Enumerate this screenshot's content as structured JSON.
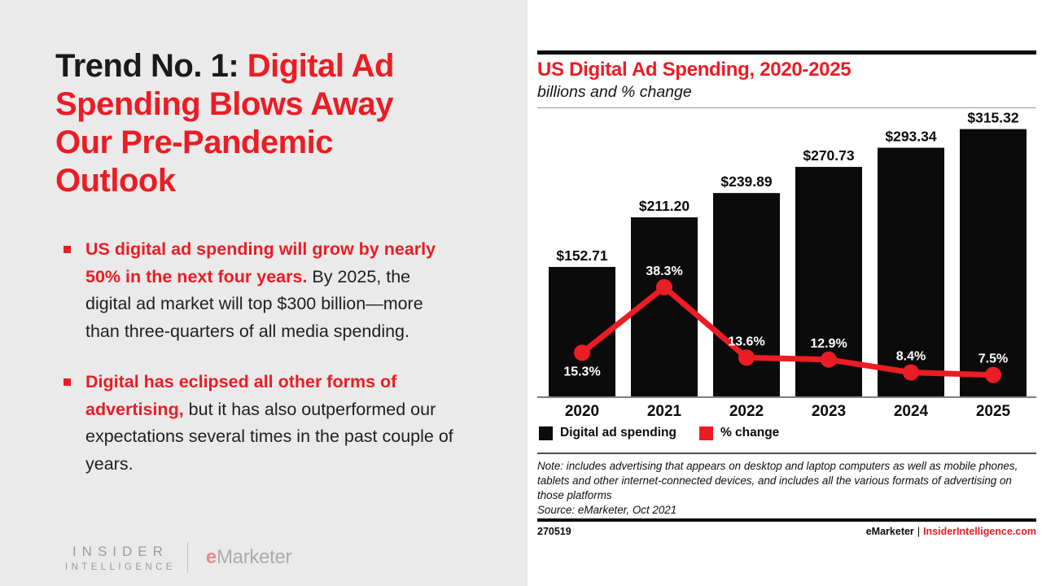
{
  "colors": {
    "accent_red": "#ec1c24",
    "bar_black": "#0b0b0b",
    "left_panel_bg": "#eaeaea",
    "axis_gray": "#7d7d7d"
  },
  "slide": {
    "title": {
      "black": "Trend No. 1: ",
      "red": "Digital Ad Spending Blows Away Our Pre-Pandemic Outlook"
    },
    "bullets": [
      {
        "lead": "US digital ad spending will grow by nearly 50% in the next four years.",
        "rest": " By 2025, the digital ad market will top $300 billion—more than three-quarters of all media spending."
      },
      {
        "lead": "Digital has eclipsed all other forms of advertising,",
        "rest": " but it has also outperformed our expectations several times in the past couple of years."
      }
    ],
    "logo": {
      "insider_line1": "INSIDER",
      "insider_line2": "INTELLIGENCE",
      "emarketer_e": "e",
      "emarketer_rest": "Marketer"
    }
  },
  "chart": {
    "title": "US Digital Ad Spending, 2020-2025",
    "subtitle": "billions and % change",
    "legend": [
      {
        "label": "Digital ad spending",
        "color": "#0b0b0b"
      },
      {
        "label": "% change",
        "color": "#ec1c24"
      }
    ],
    "note": "Note: includes advertising that appears on desktop and laptop computers as well as mobile phones, tablets and other internet-connected devices, and includes all the various formats of advertising on those platforms",
    "source": "Source: eMarketer, Oct 2021",
    "footer": {
      "left_id": "270519",
      "right_brand": "eMarketer",
      "right_sep": "|",
      "right_link": "InsiderIntelligence.com"
    }
  },
  "chart_data": {
    "type": "bar",
    "subtype": "bar-line-combo",
    "title": "US Digital Ad Spending, 2020-2025",
    "xlabel": "",
    "ylabel": "billions and % change",
    "categories": [
      "2020",
      "2021",
      "2022",
      "2023",
      "2024",
      "2025"
    ],
    "series": [
      {
        "name": "Digital ad spending",
        "type": "bar",
        "unit": "USD billions",
        "values": [
          152.71,
          211.2,
          239.89,
          270.73,
          293.34,
          315.32
        ],
        "labels": [
          "$152.71",
          "$211.20",
          "$239.89",
          "$270.73",
          "$293.34",
          "$315.32"
        ],
        "color": "#0b0b0b"
      },
      {
        "name": "% change",
        "type": "line",
        "unit": "percent",
        "values": [
          15.3,
          38.3,
          13.6,
          12.9,
          8.4,
          7.5
        ],
        "labels": [
          "15.3%",
          "38.3%",
          "13.6%",
          "12.9%",
          "8.4%",
          "7.5%"
        ],
        "label_positions": [
          "below",
          "above",
          "above",
          "above",
          "above",
          "above"
        ],
        "color": "#ec1c24"
      }
    ],
    "ylim_bars": [
      0,
      338
    ],
    "ylim_pct": [
      0,
      100.5
    ],
    "grid": false,
    "legend_position": "bottom-left"
  }
}
